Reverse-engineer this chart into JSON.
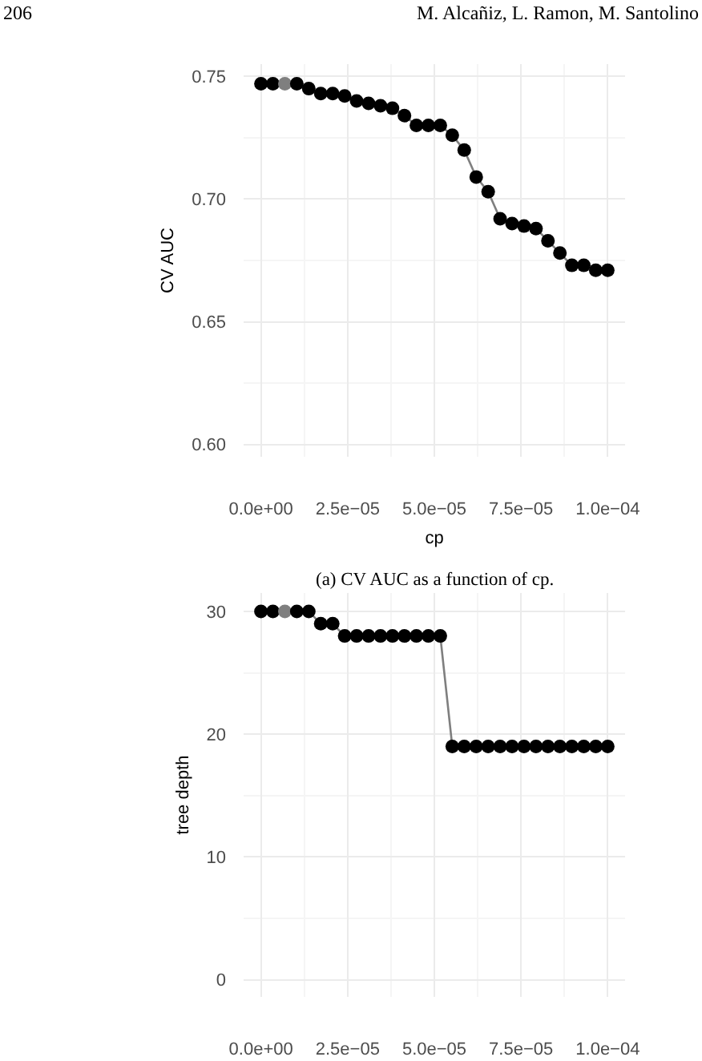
{
  "chart_data": [
    {
      "type": "line",
      "xlabel": "cp",
      "ylabel": "CV AUC",
      "annotations": [
        "206",
        "M. Alcañiz, L. Ramon, M. Santolino",
        "(a) CV AUC as a function of cp."
      ],
      "x": [
        0,
        3.45e-06,
        6.9e-06,
        1.034e-05,
        1.379e-05,
        1.724e-05,
        2.069e-05,
        2.414e-05,
        2.759e-05,
        3.103e-05,
        3.448e-05,
        3.793e-05,
        4.138e-05,
        4.483e-05,
        4.828e-05,
        5.172e-05,
        5.517e-05,
        5.862e-05,
        6.207e-05,
        6.552e-05,
        6.897e-05,
        7.241e-05,
        7.586e-05,
        7.931e-05,
        8.276e-05,
        8.621e-05,
        8.966e-05,
        9.31e-05,
        9.655e-05,
        0.0001
      ],
      "series": [
        {
          "color": "#7f7f7f",
          "colors": [
            "#000000",
            "#000000",
            "#7f7f7f",
            "#000000",
            "#000000",
            "#000000",
            "#000000",
            "#000000",
            "#000000",
            "#000000",
            "#000000",
            "#000000",
            "#000000",
            "#000000",
            "#000000",
            "#000000",
            "#000000",
            "#000000",
            "#000000",
            "#000000",
            "#000000",
            "#000000",
            "#000000",
            "#000000",
            "#000000",
            "#000000",
            "#000000",
            "#000000",
            "#000000",
            "#000000"
          ],
          "values": [
            0.747,
            0.747,
            0.747,
            0.747,
            0.745,
            0.743,
            0.743,
            0.742,
            0.74,
            0.739,
            0.738,
            0.737,
            0.734,
            0.73,
            0.73,
            0.73,
            0.726,
            0.72,
            0.709,
            0.703,
            0.692,
            0.69,
            0.689,
            0.688,
            0.683,
            0.678,
            0.673,
            0.673,
            0.671,
            0.671
          ]
        }
      ],
      "marker": "circle",
      "grid": true,
      "xlim": [
        -5e-06,
        0.000105
      ],
      "xticks": [
        {
          "value": 0,
          "label": "0.0e+00"
        },
        {
          "value": 1.25e-05,
          "label": null
        },
        {
          "value": 2.5e-05,
          "label": "2.5e−05"
        },
        {
          "value": 3.75e-05,
          "label": null
        },
        {
          "value": 5e-05,
          "label": "5.0e−05"
        },
        {
          "value": 6.25e-05,
          "label": null
        },
        {
          "value": 7.5e-05,
          "label": "7.5e−05"
        },
        {
          "value": 8.75e-05,
          "label": null
        },
        {
          "value": 0.0001,
          "label": "1.0e−04"
        }
      ],
      "ylim": [
        0.595,
        0.755
      ],
      "yticks": [
        {
          "value": 0.6,
          "label": "0.60"
        },
        {
          "value": 0.625,
          "label": null
        },
        {
          "value": 0.65,
          "label": "0.65"
        },
        {
          "value": 0.675,
          "label": null
        },
        {
          "value": 0.7,
          "label": "0.70"
        },
        {
          "value": 0.725,
          "label": null
        },
        {
          "value": 0.75,
          "label": "0.75"
        }
      ]
    },
    {
      "type": "line",
      "ylabel": "tree depth",
      "x": [
        0,
        3.45e-06,
        6.9e-06,
        1.034e-05,
        1.379e-05,
        1.724e-05,
        2.069e-05,
        2.414e-05,
        2.759e-05,
        3.103e-05,
        3.448e-05,
        3.793e-05,
        4.138e-05,
        4.483e-05,
        4.828e-05,
        5.172e-05,
        5.517e-05,
        5.862e-05,
        6.207e-05,
        6.552e-05,
        6.897e-05,
        7.241e-05,
        7.586e-05,
        7.931e-05,
        8.276e-05,
        8.621e-05,
        8.966e-05,
        9.31e-05,
        9.655e-05,
        0.0001
      ],
      "series": [
        {
          "color": "#7f7f7f",
          "colors": [
            "#000000",
            "#000000",
            "#7f7f7f",
            "#000000",
            "#000000",
            "#000000",
            "#000000",
            "#000000",
            "#000000",
            "#000000",
            "#000000",
            "#000000",
            "#000000",
            "#000000",
            "#000000",
            "#000000",
            "#000000",
            "#000000",
            "#000000",
            "#000000",
            "#000000",
            "#000000",
            "#000000",
            "#000000",
            "#000000",
            "#000000",
            "#000000",
            "#000000",
            "#000000",
            "#000000"
          ],
          "values": [
            30,
            30,
            30,
            30,
            30,
            29,
            29,
            28,
            28,
            28,
            28,
            28,
            28,
            28,
            28,
            28,
            19,
            19,
            19,
            19,
            19,
            19,
            19,
            19,
            19,
            19,
            19,
            19,
            19,
            19
          ]
        }
      ],
      "marker": "circle",
      "grid": true,
      "xlim": [
        -5e-06,
        0.000105
      ],
      "xticks": [
        {
          "value": 0,
          "label": "0.0e+00"
        },
        {
          "value": 1.25e-05,
          "label": null
        },
        {
          "value": 2.5e-05,
          "label": "2.5e−05"
        },
        {
          "value": 3.75e-05,
          "label": null
        },
        {
          "value": 5e-05,
          "label": "5.0e−05"
        },
        {
          "value": 6.25e-05,
          "label": null
        },
        {
          "value": 7.5e-05,
          "label": "7.5e−05"
        },
        {
          "value": 8.75e-05,
          "label": null
        },
        {
          "value": 0.0001,
          "label": "1.0e−04"
        }
      ],
      "ylim": [
        -1.4,
        31.5
      ],
      "yticks": [
        0,
        {
          "value": 5,
          "label": null
        },
        10,
        {
          "value": 15,
          "label": null
        },
        20,
        {
          "value": 25,
          "label": null
        },
        30
      ]
    }
  ]
}
